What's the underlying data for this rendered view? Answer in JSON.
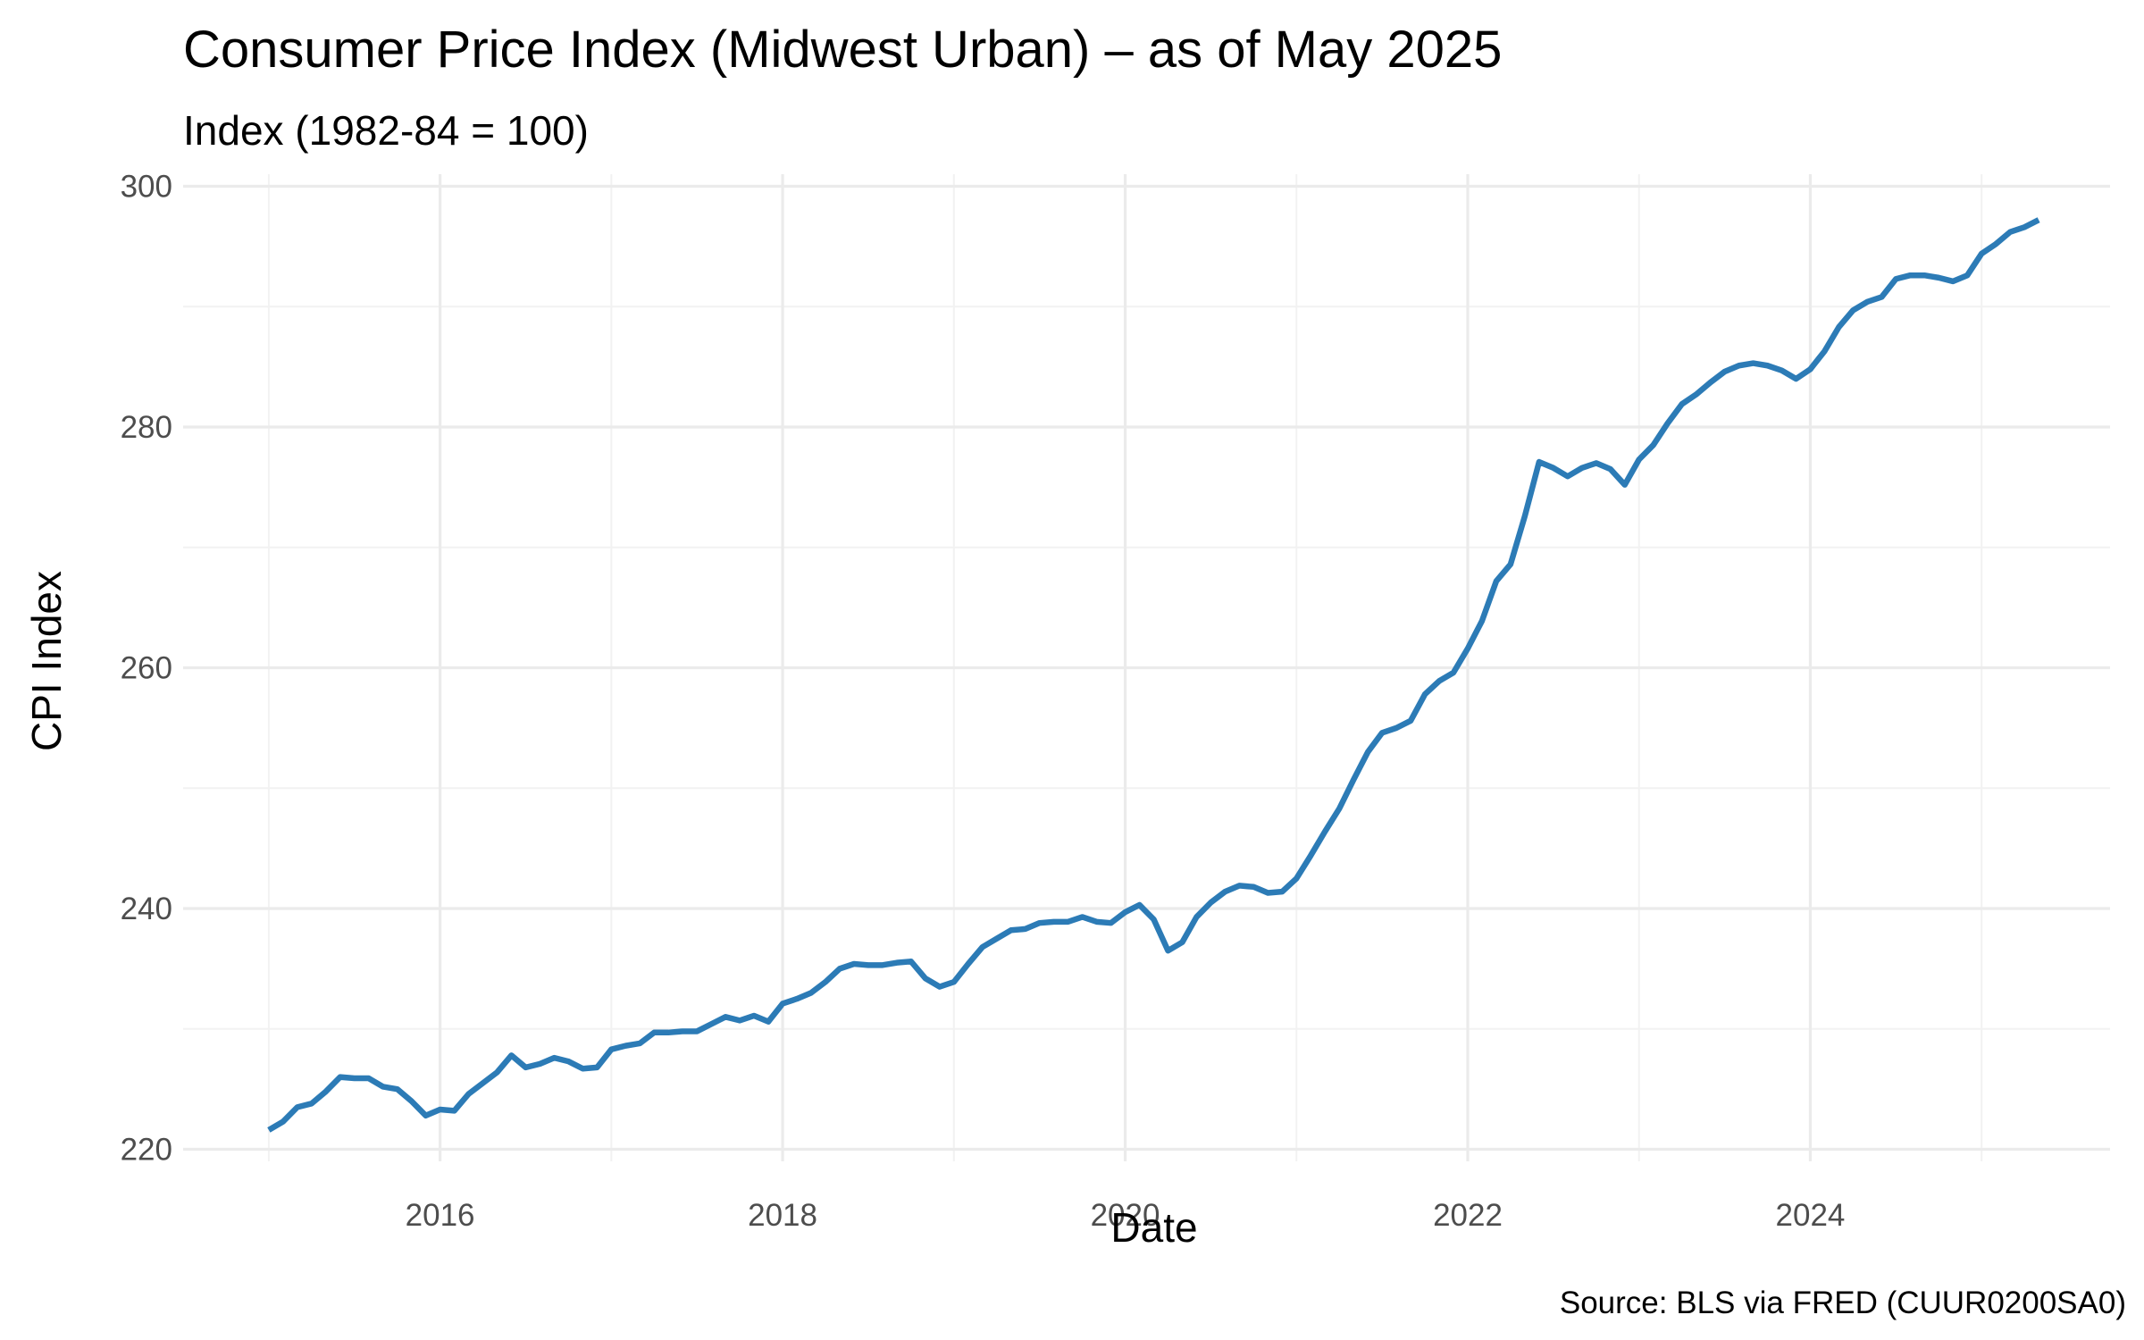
{
  "chart_data": {
    "type": "line",
    "title": "Consumer Price Index (Midwest Urban) – as of May 2025",
    "subtitle": "Index (1982-84 = 100)",
    "xlabel": "Date",
    "ylabel": "CPI Index",
    "caption": "Source: BLS via FRED (CUUR0200SA0)",
    "line_color": "#2c7bb6",
    "grid": true,
    "legend": "none",
    "xlim": [
      "2014-07-01",
      "2025-10-01"
    ],
    "ylim": [
      219,
      301
    ],
    "x_ticks": [
      {
        "date": "2016-01-01",
        "label": "2016"
      },
      {
        "date": "2018-01-01",
        "label": "2018"
      },
      {
        "date": "2020-01-01",
        "label": "2020"
      },
      {
        "date": "2022-01-01",
        "label": "2022"
      },
      {
        "date": "2024-01-01",
        "label": "2024"
      }
    ],
    "y_ticks": [
      {
        "value": 220,
        "label": "220"
      },
      {
        "value": 240,
        "label": "240"
      },
      {
        "value": 260,
        "label": "260"
      },
      {
        "value": 280,
        "label": "280"
      },
      {
        "value": 300,
        "label": "300"
      }
    ],
    "series": [
      {
        "start": "2015-01",
        "values": [
          221.6,
          222.3,
          223.5,
          223.8,
          224.8,
          226.0,
          225.9,
          225.9,
          225.2,
          225.0,
          224.0,
          222.8,
          223.3,
          223.2,
          224.6,
          225.5,
          226.4,
          227.8,
          226.8,
          227.1,
          227.6,
          227.3,
          226.7,
          226.8,
          228.3,
          228.6,
          228.8,
          229.7,
          229.7,
          229.8,
          229.8,
          230.4,
          231.0,
          230.7,
          231.1,
          230.6,
          232.1,
          232.5,
          233.0,
          233.9,
          235.0,
          235.4,
          235.3,
          235.3,
          235.5,
          235.6,
          234.2,
          233.5,
          233.9,
          235.4,
          236.8,
          237.5,
          238.2,
          238.3,
          238.8,
          238.9,
          238.9,
          239.3,
          238.9,
          238.8,
          239.7,
          240.3,
          239.1,
          236.5,
          237.2,
          239.3,
          240.5,
          241.4,
          241.9,
          241.8,
          241.3,
          241.4,
          242.5,
          244.4,
          246.4,
          248.3,
          250.7,
          253.0,
          254.6,
          255.0,
          255.6,
          257.8,
          258.9,
          259.6,
          261.6,
          263.9,
          267.2,
          268.6,
          272.6,
          277.1,
          276.6,
          275.9,
          276.6,
          277.0,
          276.5,
          275.2,
          277.3,
          278.5,
          280.3,
          281.9,
          282.7,
          283.7,
          284.6,
          285.1,
          285.3,
          285.1,
          284.7,
          284.0,
          284.8,
          286.3,
          288.3,
          289.7,
          290.4,
          290.8,
          292.3,
          292.6,
          292.6,
          292.4,
          292.1,
          292.6,
          294.4,
          295.2,
          296.2,
          296.6,
          297.2
        ]
      }
    ]
  }
}
